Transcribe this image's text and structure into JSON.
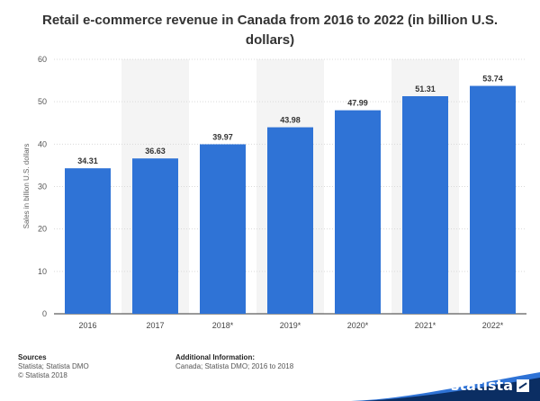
{
  "chart_data": {
    "type": "bar",
    "title": "Retail e-commerce revenue in Canada from 2016 to 2022 (in billion U.S. dollars)",
    "xlabel": "",
    "ylabel": "Sales in billion U.S. dollars",
    "categories": [
      "2016",
      "2017",
      "2018*",
      "2019*",
      "2020*",
      "2021*",
      "2022*"
    ],
    "values": [
      34.31,
      36.63,
      39.97,
      43.98,
      47.99,
      51.31,
      53.74
    ],
    "value_labels": [
      "34.31",
      "36.63",
      "39.97",
      "43.98",
      "47.99",
      "51.31",
      "53.74"
    ],
    "ylim": [
      0,
      60
    ],
    "yticks": [
      "0",
      "10",
      "20",
      "30",
      "40",
      "50",
      "60"
    ],
    "grid": true,
    "bar_color": "#2f73d6",
    "band_color": "#f4f4f4"
  },
  "footer": {
    "sources_heading": "Sources",
    "sources_line1": "Statista; Statista DMO",
    "sources_line2": "© Statista 2018",
    "additional_heading": "Additional Information:",
    "additional_line1": "Canada; Statista DMO; 2016 to 2018"
  },
  "brand": {
    "logo_text": "statista",
    "logo_icon": "statista-arrow-icon",
    "band_color": "#0b2e63",
    "accent_color": "#2f73d6"
  }
}
